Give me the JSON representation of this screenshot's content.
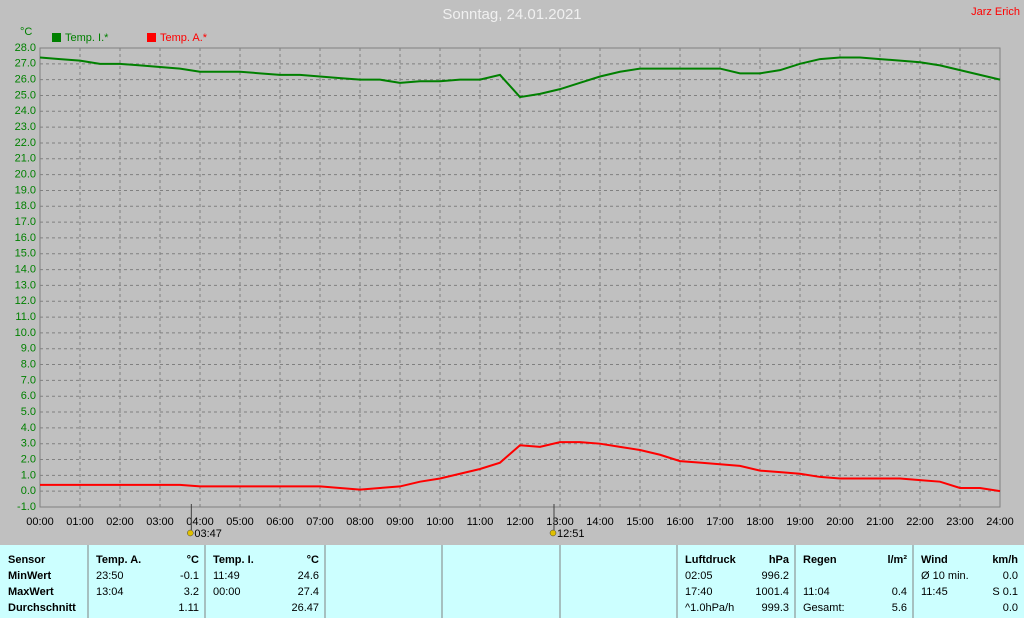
{
  "chart_data": {
    "type": "line",
    "title": "Sonntag, 24.01.2021",
    "author": "Jarz Erich",
    "y_unit": "°C",
    "x": [
      0,
      0.5,
      1,
      1.5,
      2,
      2.5,
      3,
      3.5,
      4,
      4.5,
      5,
      5.5,
      6,
      6.5,
      7,
      7.5,
      8,
      8.5,
      9,
      9.5,
      10,
      10.5,
      11,
      11.5,
      12,
      12.5,
      13,
      13.5,
      14,
      14.5,
      15,
      15.5,
      16,
      16.5,
      17,
      17.5,
      18,
      18.5,
      19,
      19.5,
      20,
      20.5,
      21,
      21.5,
      22,
      22.5,
      23,
      23.5,
      24
    ],
    "series": [
      {
        "name": "Temp. I.*",
        "color": "#008000",
        "values": [
          27.4,
          27.3,
          27.2,
          27.0,
          27.0,
          26.9,
          26.8,
          26.7,
          26.5,
          26.5,
          26.5,
          26.4,
          26.3,
          26.3,
          26.2,
          26.1,
          26.0,
          26.0,
          25.8,
          25.9,
          25.9,
          26.0,
          26.0,
          26.3,
          24.9,
          25.1,
          25.4,
          25.8,
          26.2,
          26.5,
          26.7,
          26.7,
          26.7,
          26.7,
          26.7,
          26.4,
          26.4,
          26.6,
          27.0,
          27.3,
          27.4,
          27.4,
          27.3,
          27.2,
          27.1,
          26.9,
          26.6,
          26.3,
          26.0
        ]
      },
      {
        "name": "Temp. A.*",
        "color": "#ff0000",
        "values": [
          0.4,
          0.4,
          0.4,
          0.4,
          0.4,
          0.4,
          0.4,
          0.4,
          0.3,
          0.3,
          0.3,
          0.3,
          0.3,
          0.3,
          0.3,
          0.2,
          0.1,
          0.2,
          0.3,
          0.6,
          0.8,
          1.1,
          1.4,
          1.8,
          2.9,
          2.8,
          3.1,
          3.1,
          3.0,
          2.8,
          2.6,
          2.3,
          1.9,
          1.8,
          1.7,
          1.6,
          1.3,
          1.2,
          1.1,
          0.9,
          0.8,
          0.8,
          0.8,
          0.8,
          0.7,
          0.6,
          0.2,
          0.2,
          0.0
        ]
      }
    ],
    "xlim": [
      0,
      24
    ],
    "xticks": [
      {
        "value": 0,
        "label": "00:00"
      },
      {
        "value": 1,
        "label": "01:00"
      },
      {
        "value": 2,
        "label": "02:00"
      },
      {
        "value": 3,
        "label": "03:00"
      },
      {
        "value": 4,
        "label": "04:00"
      },
      {
        "value": 5,
        "label": "05:00"
      },
      {
        "value": 6,
        "label": "06:00"
      },
      {
        "value": 7,
        "label": "07:00"
      },
      {
        "value": 8,
        "label": "08:00"
      },
      {
        "value": 9,
        "label": "09:00"
      },
      {
        "value": 10,
        "label": "10:00"
      },
      {
        "value": 11,
        "label": "11:00"
      },
      {
        "value": 12,
        "label": "12:00"
      },
      {
        "value": 13,
        "label": "13:00"
      },
      {
        "value": 14,
        "label": "14:00"
      },
      {
        "value": 15,
        "label": "15:00"
      },
      {
        "value": 16,
        "label": "16:00"
      },
      {
        "value": 17,
        "label": "17:00"
      },
      {
        "value": 18,
        "label": "18:00"
      },
      {
        "value": 19,
        "label": "19:00"
      },
      {
        "value": 20,
        "label": "20:00"
      },
      {
        "value": 21,
        "label": "21:00"
      },
      {
        "value": 22,
        "label": "22:00"
      },
      {
        "value": 23,
        "label": "23:00"
      },
      {
        "value": 24,
        "label": "24:00"
      }
    ],
    "ylim": [
      -1,
      28
    ],
    "yticks": [
      {
        "value": -1,
        "label": "-1.0"
      },
      {
        "value": 0,
        "label": "0.0"
      },
      {
        "value": 1,
        "label": "1.0"
      },
      {
        "value": 2,
        "label": "2.0"
      },
      {
        "value": 3,
        "label": "3.0"
      },
      {
        "value": 4,
        "label": "4.0"
      },
      {
        "value": 5,
        "label": "5.0"
      },
      {
        "value": 6,
        "label": "6.0"
      },
      {
        "value": 7,
        "label": "7.0"
      },
      {
        "value": 8,
        "label": "8.0"
      },
      {
        "value": 9,
        "label": "9.0"
      },
      {
        "value": 10,
        "label": "10.0"
      },
      {
        "value": 11,
        "label": "11.0"
      },
      {
        "value": 12,
        "label": "12.0"
      },
      {
        "value": 13,
        "label": "13.0"
      },
      {
        "value": 14,
        "label": "14.0"
      },
      {
        "value": 15,
        "label": "15.0"
      },
      {
        "value": 16,
        "label": "16.0"
      },
      {
        "value": 17,
        "label": "17.0"
      },
      {
        "value": 18,
        "label": "18.0"
      },
      {
        "value": 19,
        "label": "19.0"
      },
      {
        "value": 20,
        "label": "20.0"
      },
      {
        "value": 21,
        "label": "21.0"
      },
      {
        "value": 22,
        "label": "22.0"
      },
      {
        "value": 23,
        "label": "23.0"
      },
      {
        "value": 24,
        "label": "24.0"
      },
      {
        "value": 25,
        "label": "25.0"
      },
      {
        "value": 26,
        "label": "26.0"
      },
      {
        "value": 27,
        "label": "27.0"
      },
      {
        "value": 28,
        "label": "28.0"
      }
    ],
    "grid": true,
    "markers": [
      {
        "x": 3.7833,
        "label": "03:47"
      },
      {
        "x": 12.85,
        "label": "12:51"
      }
    ]
  },
  "table": {
    "row_labels": [
      "Sensor",
      "MinWert",
      "MaxWert",
      "Durchschnitt"
    ],
    "columns": [
      {
        "name": "Temp. A.",
        "unit": "°C",
        "rows": [
          {
            "time": "23:50",
            "value": "-0.1"
          },
          {
            "time": "13:04",
            "value": "3.2"
          },
          {
            "value": "1.11"
          }
        ]
      },
      {
        "name": "Temp. I.",
        "unit": "°C",
        "rows": [
          {
            "time": "11:49",
            "value": "24.6"
          },
          {
            "time": "00:00",
            "value": "27.4"
          },
          {
            "value": "26.47"
          }
        ]
      },
      {
        "name": "Luftdruck",
        "unit": "hPa",
        "rows": [
          {
            "time": "02:05",
            "value": "996.2"
          },
          {
            "time": "17:40",
            "value": "1001.4"
          },
          {
            "time": "^1.0hPa/h",
            "value": "999.3"
          }
        ]
      },
      {
        "name": "Regen",
        "unit": "l/m²",
        "rows": [
          {},
          {
            "time": "11:04",
            "value": "0.4"
          },
          {
            "time": "Gesamt:",
            "value": "5.6"
          }
        ]
      },
      {
        "name": "Wind",
        "unit": "km/h",
        "rows": [
          {
            "time": "Ø 10 min.",
            "value": "0.0"
          },
          {
            "time": "11:45",
            "value": "S 0.1"
          },
          {
            "value": "0.0"
          }
        ]
      }
    ]
  }
}
